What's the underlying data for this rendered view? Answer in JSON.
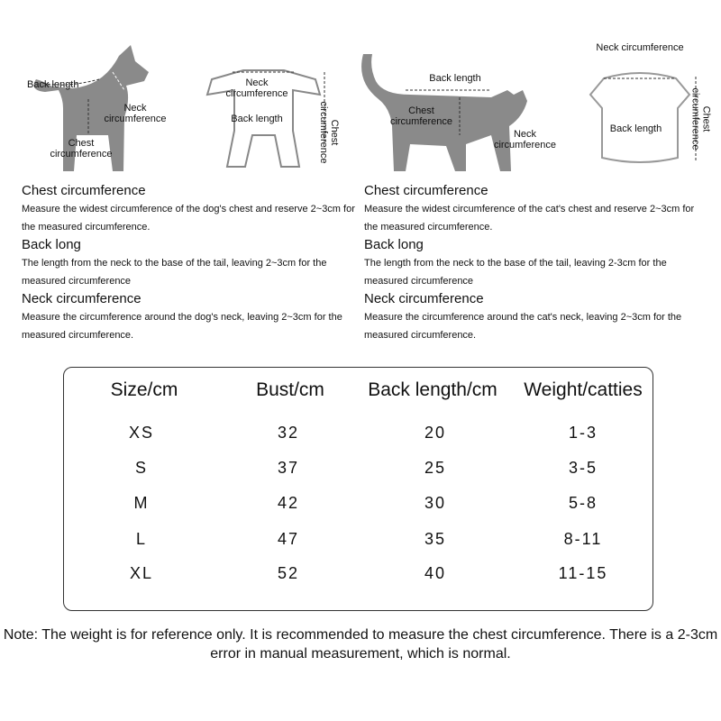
{
  "illustrations": {
    "dog": {
      "back_length": "Back length",
      "neck": "Neck circumference",
      "chest": "Chest circumference"
    },
    "dog_clothes": {
      "neck": "Neck circumference",
      "back_length": "Back length",
      "chest": "Chest circumference"
    },
    "cat": {
      "back_length": "Back length",
      "chest": "Chest circumference",
      "neck": "Neck circumference"
    },
    "cat_clothes": {
      "neck": "Neck circumference",
      "back_length": "Back length",
      "chest": "Chest circumference"
    }
  },
  "dog_guide": [
    {
      "title": "Chest circumference",
      "text": "Measure the widest circumference of the dog's chest and reserve 2~3cm for the measured circumference."
    },
    {
      "title": "Back long",
      "text": "The length from the neck to the base of the tail, leaving 2~3cm for the measured circumference"
    },
    {
      "title": "Neck circumference",
      "text": "Measure the circumference around the dog's neck, leaving 2~3cm for the measured circumference."
    }
  ],
  "cat_guide": [
    {
      "title": "Chest circumference",
      "text": "Measure the widest circumference of the cat's chest and reserve 2~3cm for the measured circumference."
    },
    {
      "title": "Back long",
      "text": "The length from the neck to the base of the tail, leaving 2-3cm for the measured circumference"
    },
    {
      "title": "Neck circumference",
      "text": "Measure the circumference around the cat's neck, leaving 2~3cm for the measured circumference."
    }
  ],
  "size_table": {
    "headers": [
      "Size/cm",
      "Bust/cm",
      "Back length/cm",
      "Weight/catties"
    ],
    "rows": [
      [
        "XS",
        "32",
        "20",
        "1-3"
      ],
      [
        "S",
        "37",
        "25",
        "3-5"
      ],
      [
        "M",
        "42",
        "30",
        "5-8"
      ],
      [
        "L",
        "47",
        "35",
        "8-11"
      ],
      [
        "XL",
        "52",
        "40",
        "11-15"
      ]
    ]
  },
  "note": "Note: The weight is for reference only. It is recommended to measure the chest circumference. There is a 2-3cm error in manual measurement, which is normal.",
  "colors": {
    "silhouette": "#8a8a8a",
    "border": "#333333"
  }
}
